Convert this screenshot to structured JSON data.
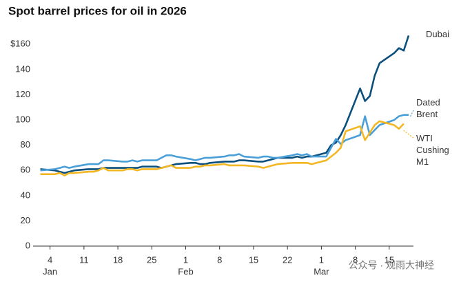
{
  "chart_data": {
    "type": "line",
    "title": "Spot barrel prices for oil in 2026",
    "x": [
      2,
      5,
      6,
      7,
      8,
      9,
      12,
      13,
      14,
      15,
      16,
      19,
      20,
      21,
      22,
      23,
      26,
      27,
      28,
      29,
      30,
      33,
      34,
      35,
      36,
      37,
      40,
      41,
      42,
      43,
      44,
      47,
      48,
      49,
      50,
      51,
      54,
      55,
      56,
      57,
      58,
      61,
      62,
      63,
      64,
      65,
      68,
      69,
      70,
      71,
      72,
      75,
      76,
      77,
      78
    ],
    "series": [
      {
        "name": "Dubai",
        "color": "#0b4f7c",
        "values": [
          61,
          60,
          59,
          58,
          59,
          60,
          61,
          61,
          61,
          62,
          62,
          62,
          62,
          62,
          62,
          63,
          63,
          62,
          63,
          64,
          65,
          66,
          66,
          65,
          65,
          66,
          67,
          67,
          67,
          68,
          68,
          67,
          67,
          68,
          69,
          70,
          70,
          71,
          70,
          71,
          71,
          74,
          80,
          82,
          88,
          96,
          125,
          115,
          119,
          135,
          145,
          153,
          157,
          155,
          167
        ]
      },
      {
        "name": "Dated Brent",
        "color": "#4a9fd8",
        "values": [
          60,
          61,
          62,
          63,
          62,
          63,
          65,
          65,
          65,
          68,
          68,
          67,
          67,
          68,
          67,
          68,
          68,
          70,
          72,
          72,
          71,
          69,
          68,
          69,
          70,
          70,
          71,
          72,
          72,
          73,
          71,
          70,
          71,
          71,
          70,
          70,
          72,
          73,
          72,
          73,
          71,
          71,
          78,
          85,
          81,
          84,
          88,
          103,
          88,
          92,
          96,
          100,
          103,
          104,
          104
        ]
      },
      {
        "name": "WTI Cushing M1",
        "color": "#f2b722",
        "values": [
          57,
          57,
          58,
          56,
          58,
          58,
          59,
          59,
          60,
          62,
          60,
          60,
          61,
          61,
          60,
          61,
          61,
          62,
          63,
          64,
          62,
          62,
          63,
          63,
          64,
          64,
          65,
          64,
          64,
          64,
          64,
          63,
          62,
          63,
          64,
          65,
          66,
          66,
          66,
          66,
          65,
          68,
          71,
          74,
          78,
          91,
          95,
          84,
          90,
          96,
          99,
          96,
          93,
          97,
          null
        ]
      }
    ],
    "xlim": [
      0.5,
      79
    ],
    "xticks": [
      4,
      11,
      18,
      25,
      {
        "value": 32,
        "label": "1"
      },
      {
        "value": 39,
        "label": "8"
      },
      {
        "value": 46,
        "label": "15"
      },
      {
        "value": 53,
        "label": "22"
      },
      {
        "value": 60,
        "label": "1"
      },
      {
        "value": 67,
        "label": "8"
      },
      {
        "value": 74,
        "label": "15"
      }
    ],
    "month_labels": [
      {
        "value": 4,
        "label": "Jan"
      },
      {
        "value": 32,
        "label": "Feb"
      },
      {
        "value": 60,
        "label": "Mar"
      }
    ],
    "ylim": [
      0,
      170
    ],
    "yticks": [
      0,
      20,
      40,
      60,
      80,
      100,
      120,
      140,
      {
        "value": 160,
        "label": "$160"
      }
    ],
    "grid": false,
    "watermark": "公众号 · 观雨大神经"
  }
}
